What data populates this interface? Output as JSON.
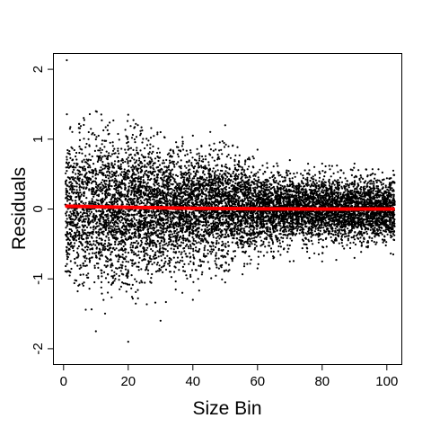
{
  "chart_data": {
    "type": "scatter",
    "title": "",
    "xlabel": "Size Bin",
    "ylabel": "Residuals",
    "xlim": [
      -3,
      104.5
    ],
    "ylim": [
      -2.22,
      2.22
    ],
    "x_ticks": [
      "0",
      "20",
      "40",
      "60",
      "80",
      "100"
    ],
    "x_tick_values": [
      0,
      20,
      40,
      60,
      80,
      100
    ],
    "y_ticks": [
      "-2",
      "-1",
      "0",
      "1",
      "2"
    ],
    "y_tick_values": [
      -2,
      -1,
      0,
      1,
      2
    ],
    "grid": false,
    "legend": "none",
    "series": [
      {
        "kind": "points",
        "color": "#000000",
        "x_range": [
          1,
          102
        ],
        "spread_by_bin": [
          {
            "x": 1,
            "min": -0.9,
            "max": 2.13
          },
          {
            "x": 10,
            "min": -1.75,
            "max": 1.4
          },
          {
            "x": 20,
            "min": -1.9,
            "max": 1.35
          },
          {
            "x": 30,
            "min": -1.6,
            "max": 1.1
          },
          {
            "x": 40,
            "min": -1.3,
            "max": 1.05
          },
          {
            "x": 50,
            "min": -1.05,
            "max": 1.2
          },
          {
            "x": 60,
            "min": -0.85,
            "max": 0.85
          },
          {
            "x": 70,
            "min": -0.75,
            "max": 0.7
          },
          {
            "x": 80,
            "min": -0.75,
            "max": 0.65
          },
          {
            "x": 90,
            "min": -0.7,
            "max": 0.65
          },
          {
            "x": 102,
            "min": -0.65,
            "max": 0.55
          }
        ]
      },
      {
        "kind": "line",
        "color": "#ff0000",
        "x": [
          1,
          20,
          40,
          60,
          80,
          102
        ],
        "values": [
          0.04,
          0.025,
          0.01,
          0.003,
          0.0,
          0.0
        ]
      }
    ]
  }
}
